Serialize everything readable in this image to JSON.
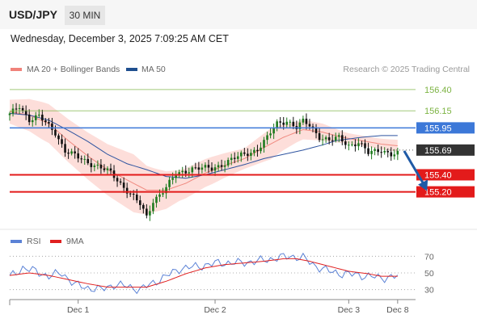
{
  "header": {
    "pair": "USD/JPY",
    "timeframe": "30 MIN"
  },
  "timestamp": "Wednesday, December 3, 2025 7:09:25 AM CET",
  "legend": {
    "bollinger": {
      "label": "MA 20 + Bollinger Bands",
      "color": "#f0827a"
    },
    "ma50": {
      "label": "MA 50",
      "color": "#1f4f8f"
    },
    "rsi": {
      "label": "RSI",
      "color": "#5b82d6"
    },
    "rsi_ma": {
      "label": "9MA",
      "color": "#e02020"
    }
  },
  "credit": "Research © 2025 Trading Central",
  "chart_data": [
    {
      "type": "candlestick",
      "ylim": [
        154.77,
        156.55
      ],
      "x_ticks": [
        "Dec 1",
        "Dec 2",
        "Dec 3",
        "Dec 8"
      ],
      "colors": {
        "up": "#1e7a1e",
        "down": "#111111",
        "bands": "#fdd8d4",
        "ma20": "#f08a80",
        "ma50": "#2f54a0"
      },
      "price_levels": [
        {
          "label": "156.40",
          "value": 156.4,
          "kind": "target"
        },
        {
          "label": "156.15",
          "value": 156.15,
          "kind": "target"
        },
        {
          "label": "155.95",
          "value": 155.95,
          "kind": "pivot"
        },
        {
          "label": "155.69",
          "value": 155.69,
          "kind": "last"
        },
        {
          "label": "155.40",
          "value": 155.4,
          "kind": "support"
        },
        {
          "label": "155.20",
          "value": 155.2,
          "kind": "support"
        }
      ],
      "level_colors": {
        "target": "#7cb342",
        "pivot": "#3c78d8",
        "last": "#333333",
        "support": "#e31b1b"
      },
      "close_path": [
        [
          0,
          156.1
        ],
        [
          3,
          156.21
        ],
        [
          6,
          156.05
        ],
        [
          9,
          156.08
        ],
        [
          14,
          155.9
        ],
        [
          17,
          155.68
        ],
        [
          21,
          155.6
        ],
        [
          24,
          155.55
        ],
        [
          27,
          155.5
        ],
        [
          31,
          155.42
        ],
        [
          34,
          155.3
        ],
        [
          37,
          155.18
        ],
        [
          40,
          155.05
        ],
        [
          42,
          154.9
        ],
        [
          44,
          155.1
        ],
        [
          48,
          155.25
        ],
        [
          51,
          155.4
        ],
        [
          56,
          155.48
        ],
        [
          62,
          155.47
        ],
        [
          67,
          155.56
        ],
        [
          72,
          155.64
        ],
        [
          76,
          155.7
        ],
        [
          79,
          155.83
        ],
        [
          82,
          156.0
        ],
        [
          85,
          156.04
        ],
        [
          88,
          155.95
        ],
        [
          90,
          156.02
        ],
        [
          92,
          155.98
        ],
        [
          95,
          155.85
        ],
        [
          98,
          155.8
        ],
        [
          101,
          155.83
        ],
        [
          104,
          155.75
        ],
        [
          107,
          155.78
        ],
        [
          110,
          155.65
        ],
        [
          114,
          155.7
        ],
        [
          117,
          155.64
        ],
        [
          119,
          155.64
        ]
      ],
      "ma50_path": [
        [
          0,
          156.12
        ],
        [
          6,
          156.1
        ],
        [
          12,
          156.04
        ],
        [
          18,
          155.92
        ],
        [
          24,
          155.79
        ],
        [
          30,
          155.64
        ],
        [
          36,
          155.53
        ],
        [
          42,
          155.46
        ],
        [
          48,
          155.38
        ],
        [
          54,
          155.36
        ],
        [
          60,
          155.4
        ],
        [
          66,
          155.46
        ],
        [
          72,
          155.52
        ],
        [
          78,
          155.59
        ],
        [
          84,
          155.64
        ],
        [
          90,
          155.69
        ],
        [
          96,
          155.75
        ],
        [
          100,
          155.8
        ],
        [
          104,
          155.82
        ],
        [
          108,
          155.84
        ],
        [
          114,
          155.86
        ],
        [
          119,
          155.86
        ]
      ],
      "ma20_path": [
        [
          0,
          156.14
        ],
        [
          6,
          156.1
        ],
        [
          12,
          156.0
        ],
        [
          18,
          155.8
        ],
        [
          24,
          155.62
        ],
        [
          30,
          155.46
        ],
        [
          36,
          155.34
        ],
        [
          42,
          155.22
        ],
        [
          48,
          155.22
        ],
        [
          54,
          155.3
        ],
        [
          60,
          155.42
        ],
        [
          66,
          155.51
        ],
        [
          72,
          155.59
        ],
        [
          78,
          155.72
        ],
        [
          84,
          155.84
        ],
        [
          90,
          155.93
        ],
        [
          96,
          155.9
        ],
        [
          102,
          155.84
        ],
        [
          108,
          155.8
        ],
        [
          114,
          155.76
        ],
        [
          119,
          155.74
        ]
      ],
      "band_halfwidth": [
        [
          0,
          0.14
        ],
        [
          10,
          0.22
        ],
        [
          20,
          0.26
        ],
        [
          30,
          0.3
        ],
        [
          38,
          0.34
        ],
        [
          44,
          0.26
        ],
        [
          52,
          0.18
        ],
        [
          62,
          0.16
        ],
        [
          72,
          0.12
        ],
        [
          80,
          0.18
        ],
        [
          88,
          0.12
        ],
        [
          96,
          0.1
        ],
        [
          104,
          0.06
        ],
        [
          112,
          0.06
        ],
        [
          119,
          0.07
        ]
      ],
      "forecast_arrow": {
        "from": [
          121,
          155.68
        ],
        "to": [
          128,
          155.21
        ]
      }
    },
    {
      "type": "line",
      "title": "RSI",
      "ylim": [
        20,
        80
      ],
      "y_ticks": [
        70,
        50,
        30
      ],
      "rsi_path": [
        [
          0,
          45
        ],
        [
          4,
          56
        ],
        [
          8,
          52
        ],
        [
          12,
          46
        ],
        [
          16,
          50
        ],
        [
          20,
          36
        ],
        [
          24,
          32
        ],
        [
          28,
          30
        ],
        [
          32,
          36
        ],
        [
          36,
          34
        ],
        [
          40,
          30
        ],
        [
          44,
          38
        ],
        [
          48,
          46
        ],
        [
          52,
          55
        ],
        [
          58,
          58
        ],
        [
          64,
          62
        ],
        [
          70,
          62
        ],
        [
          76,
          64
        ],
        [
          82,
          68
        ],
        [
          86,
          70
        ],
        [
          90,
          68
        ],
        [
          94,
          58
        ],
        [
          98,
          52
        ],
        [
          102,
          49
        ],
        [
          106,
          48
        ],
        [
          110,
          46
        ],
        [
          114,
          44
        ],
        [
          119,
          46
        ]
      ],
      "rsi_ma_path": [
        [
          0,
          47
        ],
        [
          6,
          50
        ],
        [
          12,
          47
        ],
        [
          18,
          42
        ],
        [
          24,
          37
        ],
        [
          30,
          33
        ],
        [
          36,
          33
        ],
        [
          42,
          33
        ],
        [
          48,
          40
        ],
        [
          54,
          49
        ],
        [
          60,
          56
        ],
        [
          66,
          60
        ],
        [
          72,
          62
        ],
        [
          78,
          64
        ],
        [
          84,
          67
        ],
        [
          88,
          67
        ],
        [
          92,
          64
        ],
        [
          98,
          58
        ],
        [
          104,
          52
        ],
        [
          110,
          49
        ],
        [
          114,
          46
        ],
        [
          119,
          46
        ]
      ]
    }
  ]
}
